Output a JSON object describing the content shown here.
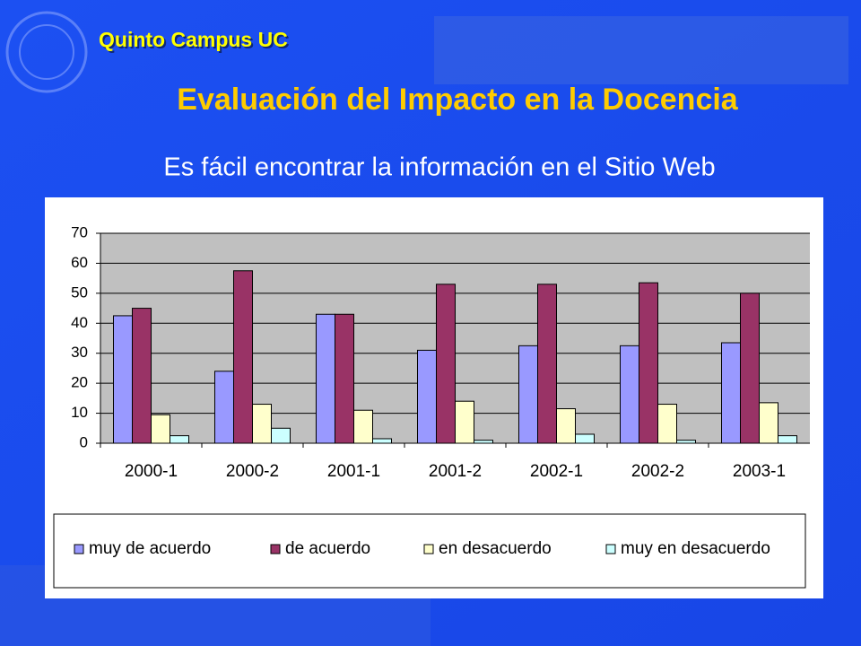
{
  "slide": {
    "brand": "Quinto Campus UC",
    "title": "Evaluación del Impacto en la Docencia"
  },
  "chart_data": {
    "type": "bar",
    "title": "Es fácil encontrar la información en el Sitio Web",
    "categories": [
      "2000-1",
      "2000-2",
      "2001-1",
      "2001-2",
      "2002-1",
      "2002-2",
      "2003-1"
    ],
    "series": [
      {
        "name": "muy de acuerdo",
        "color": "#9999ff",
        "values": [
          42.5,
          24,
          43,
          31,
          32.5,
          32.5,
          33.5
        ]
      },
      {
        "name": "de acuerdo",
        "color": "#993366",
        "values": [
          45,
          57.5,
          43,
          53,
          53,
          53.5,
          50
        ]
      },
      {
        "name": "en desacuerdo",
        "color": "#ffffcc",
        "values": [
          9.5,
          13,
          11,
          14,
          11.5,
          13,
          13.5
        ]
      },
      {
        "name": "muy en desacuerdo",
        "color": "#ccffff",
        "values": [
          2.5,
          5,
          1.5,
          1,
          3,
          1,
          2.5
        ]
      }
    ],
    "ylim": [
      0,
      70
    ],
    "yticks": [
      0,
      10,
      20,
      30,
      40,
      50,
      60,
      70
    ],
    "grid": true,
    "legend": "bottom"
  }
}
